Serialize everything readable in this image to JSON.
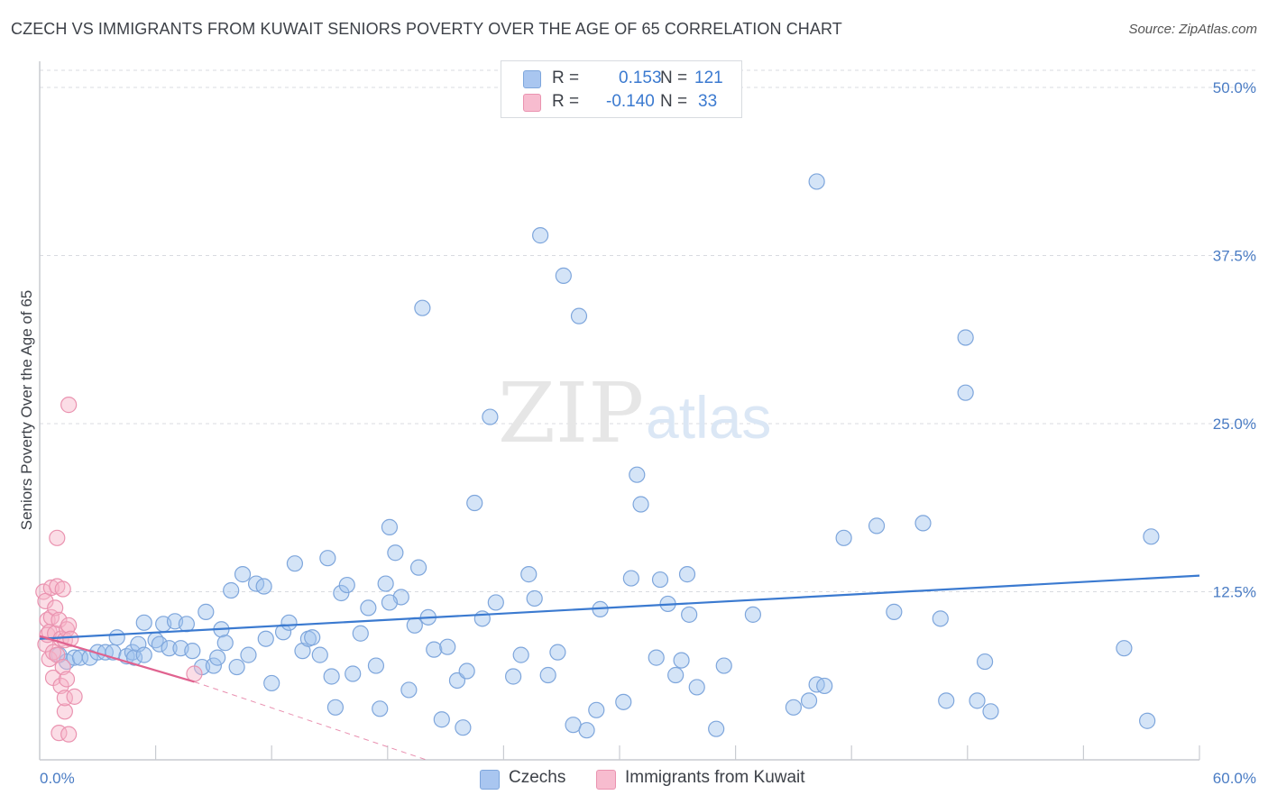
{
  "title": "CZECH VS IMMIGRANTS FROM KUWAIT SENIORS POVERTY OVER THE AGE OF 65 CORRELATION CHART",
  "source": "Source: ZipAtlas.com",
  "watermark": {
    "zip": "ZIP",
    "atlas": "atlas"
  },
  "legend": {
    "r_label": "R =",
    "n_label": "N =",
    "rows": [
      {
        "r": "0.153",
        "n": "121",
        "color": "#a9c6f0"
      },
      {
        "r": "-0.140",
        "n": "33",
        "color": "#f7bccf"
      }
    ]
  },
  "bottom_legend": [
    {
      "label": "Czechs",
      "color": "#a9c6f0"
    },
    {
      "label": "Immigrants from Kuwait",
      "color": "#f7bccf"
    }
  ],
  "chart_data": {
    "type": "scatter",
    "title": "CZECH VS IMMIGRANTS FROM KUWAIT SENIORS POVERTY OVER THE AGE OF 65 CORRELATION CHART",
    "xlabel": "",
    "ylabel": "Seniors Poverty Over the Age of 65",
    "xlim": [
      0,
      60
    ],
    "ylim": [
      0,
      50
    ],
    "x_tick_labels": [
      "0.0%",
      "60.0%"
    ],
    "y_ticks": [
      12.5,
      25.0,
      37.5,
      50.0
    ],
    "y_tick_labels": [
      "12.5%",
      "25.0%",
      "37.5%",
      "50.0%"
    ],
    "colors": {
      "czechs": "#3b7ad0",
      "kuwait": "#e0628f"
    },
    "series": [
      {
        "name": "Czechs",
        "R": 0.153,
        "N": 121,
        "trend": {
          "x": [
            0,
            60
          ],
          "y": [
            9.0,
            13.7
          ]
        },
        "points": [
          [
            1.0,
            7.8
          ],
          [
            1.4,
            7.3
          ],
          [
            1.8,
            7.6
          ],
          [
            2.1,
            7.6
          ],
          [
            2.6,
            7.6
          ],
          [
            3.0,
            8.0
          ],
          [
            3.4,
            8.0
          ],
          [
            3.8,
            8.0
          ],
          [
            4.0,
            9.1
          ],
          [
            4.5,
            7.7
          ],
          [
            4.8,
            8.0
          ],
          [
            4.9,
            7.6
          ],
          [
            5.1,
            8.6
          ],
          [
            5.4,
            7.8
          ],
          [
            5.4,
            10.2
          ],
          [
            6.0,
            8.9
          ],
          [
            6.2,
            8.6
          ],
          [
            6.4,
            10.1
          ],
          [
            6.7,
            8.3
          ],
          [
            7.0,
            10.3
          ],
          [
            7.3,
            8.3
          ],
          [
            7.6,
            10.1
          ],
          [
            7.9,
            8.1
          ],
          [
            8.4,
            6.9
          ],
          [
            8.6,
            11.0
          ],
          [
            9.0,
            7.0
          ],
          [
            9.2,
            7.6
          ],
          [
            9.4,
            9.7
          ],
          [
            9.6,
            8.7
          ],
          [
            9.9,
            12.6
          ],
          [
            10.2,
            6.9
          ],
          [
            10.5,
            13.8
          ],
          [
            10.8,
            7.8
          ],
          [
            11.2,
            13.1
          ],
          [
            11.6,
            12.9
          ],
          [
            11.7,
            9.0
          ],
          [
            12.0,
            5.7
          ],
          [
            12.6,
            9.5
          ],
          [
            12.9,
            10.2
          ],
          [
            13.2,
            14.6
          ],
          [
            13.6,
            8.1
          ],
          [
            13.9,
            9.0
          ],
          [
            14.1,
            9.1
          ],
          [
            14.5,
            7.8
          ],
          [
            14.9,
            15.0
          ],
          [
            15.1,
            6.2
          ],
          [
            15.3,
            3.9
          ],
          [
            15.6,
            12.4
          ],
          [
            15.9,
            13.0
          ],
          [
            16.2,
            6.4
          ],
          [
            16.6,
            9.4
          ],
          [
            17.0,
            11.3
          ],
          [
            17.4,
            7.0
          ],
          [
            17.6,
            3.8
          ],
          [
            17.9,
            13.1
          ],
          [
            18.1,
            17.3
          ],
          [
            18.4,
            15.4
          ],
          [
            18.7,
            12.1
          ],
          [
            19.1,
            5.2
          ],
          [
            19.4,
            10.0
          ],
          [
            19.6,
            14.3
          ],
          [
            19.8,
            33.6
          ],
          [
            20.1,
            10.6
          ],
          [
            20.4,
            8.2
          ],
          [
            20.8,
            3.0
          ],
          [
            21.1,
            8.4
          ],
          [
            21.6,
            5.9
          ],
          [
            21.9,
            2.4
          ],
          [
            22.1,
            6.6
          ],
          [
            22.5,
            19.1
          ],
          [
            22.9,
            10.5
          ],
          [
            23.3,
            25.5
          ],
          [
            23.6,
            11.7
          ],
          [
            24.5,
            6.2
          ],
          [
            24.9,
            7.8
          ],
          [
            25.3,
            13.8
          ],
          [
            25.6,
            12.0
          ],
          [
            25.9,
            39.0
          ],
          [
            26.3,
            6.3
          ],
          [
            27.1,
            36.0
          ],
          [
            27.6,
            2.6
          ],
          [
            27.9,
            33.0
          ],
          [
            28.3,
            2.2
          ],
          [
            28.8,
            3.7
          ],
          [
            29.0,
            11.2
          ],
          [
            30.2,
            4.3
          ],
          [
            30.6,
            13.5
          ],
          [
            30.9,
            21.2
          ],
          [
            31.1,
            19.0
          ],
          [
            31.9,
            7.6
          ],
          [
            32.1,
            13.4
          ],
          [
            32.5,
            11.6
          ],
          [
            32.9,
            6.3
          ],
          [
            33.2,
            7.4
          ],
          [
            33.5,
            13.8
          ],
          [
            33.6,
            10.8
          ],
          [
            34.0,
            5.4
          ],
          [
            35.0,
            2.3
          ],
          [
            35.4,
            7.0
          ],
          [
            36.9,
            10.8
          ],
          [
            39.0,
            3.9
          ],
          [
            39.8,
            4.4
          ],
          [
            40.2,
            5.6
          ],
          [
            40.6,
            5.5
          ],
          [
            41.6,
            16.5
          ],
          [
            44.2,
            11.0
          ],
          [
            45.7,
            17.6
          ],
          [
            46.6,
            10.5
          ],
          [
            46.9,
            4.4
          ],
          [
            47.9,
            27.3
          ],
          [
            47.9,
            31.4
          ],
          [
            48.5,
            4.4
          ],
          [
            48.9,
            7.3
          ],
          [
            49.2,
            3.6
          ],
          [
            56.1,
            8.3
          ],
          [
            57.3,
            2.9
          ],
          [
            57.5,
            16.6
          ],
          [
            40.2,
            43.0
          ],
          [
            43.3,
            17.4
          ],
          [
            18.1,
            11.7
          ],
          [
            26.8,
            8.0
          ]
        ]
      },
      {
        "name": "Immigrants from Kuwait",
        "R": -0.14,
        "N": 33,
        "trend": {
          "x": [
            0,
            8.0
          ],
          "y": [
            9.2,
            5.8
          ]
        },
        "trend_dashed": {
          "x": [
            8.0,
            20.0
          ],
          "y": [
            5.8,
            0.0
          ]
        },
        "points": [
          [
            0.2,
            12.5
          ],
          [
            0.3,
            11.8
          ],
          [
            0.3,
            8.6
          ],
          [
            0.4,
            9.3
          ],
          [
            0.4,
            10.4
          ],
          [
            0.5,
            7.5
          ],
          [
            0.5,
            9.5
          ],
          [
            0.6,
            12.8
          ],
          [
            0.6,
            10.6
          ],
          [
            0.7,
            6.1
          ],
          [
            0.7,
            8.0
          ],
          [
            0.8,
            11.3
          ],
          [
            0.8,
            9.4
          ],
          [
            0.9,
            12.9
          ],
          [
            0.9,
            16.5
          ],
          [
            0.9,
            7.8
          ],
          [
            1.0,
            2.0
          ],
          [
            1.0,
            10.4
          ],
          [
            1.1,
            5.5
          ],
          [
            1.1,
            9.0
          ],
          [
            1.2,
            12.7
          ],
          [
            1.2,
            6.9
          ],
          [
            1.3,
            3.6
          ],
          [
            1.3,
            4.6
          ],
          [
            1.3,
            8.9
          ],
          [
            1.4,
            6.0
          ],
          [
            1.4,
            9.7
          ],
          [
            1.5,
            10.0
          ],
          [
            1.5,
            26.4
          ],
          [
            1.5,
            1.9
          ],
          [
            1.6,
            9.0
          ],
          [
            1.8,
            4.7
          ],
          [
            8.0,
            6.4
          ]
        ]
      }
    ]
  }
}
